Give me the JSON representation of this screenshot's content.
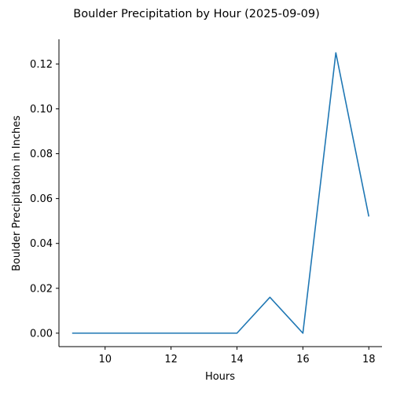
{
  "chart_data": {
    "type": "line",
    "title": "Boulder Precipitation by Hour (2025-09-09)",
    "xlabel": "Hours",
    "ylabel": "Boulder Precipitation in Inches",
    "xlim": [
      8.6,
      18.4
    ],
    "ylim": [
      -0.006,
      0.131
    ],
    "xticks": [
      10,
      12,
      14,
      16,
      18
    ],
    "xtick_labels": [
      "10",
      "12",
      "14",
      "16",
      "18"
    ],
    "yticks": [
      0.0,
      0.02,
      0.04,
      0.06,
      0.08,
      0.1,
      0.12
    ],
    "ytick_labels": [
      "0.00",
      "0.02",
      "0.04",
      "0.06",
      "0.08",
      "0.10",
      "0.12"
    ],
    "grid": false,
    "legend": "none",
    "series": [
      {
        "color": "#1f77b4",
        "x": [
          9,
          10,
          11,
          12,
          13,
          14,
          15,
          16,
          17,
          18
        ],
        "y": [
          0.0,
          0.0,
          0.0,
          0.0,
          0.0,
          0.0,
          0.016,
          0.0,
          0.125,
          0.052
        ]
      }
    ]
  }
}
